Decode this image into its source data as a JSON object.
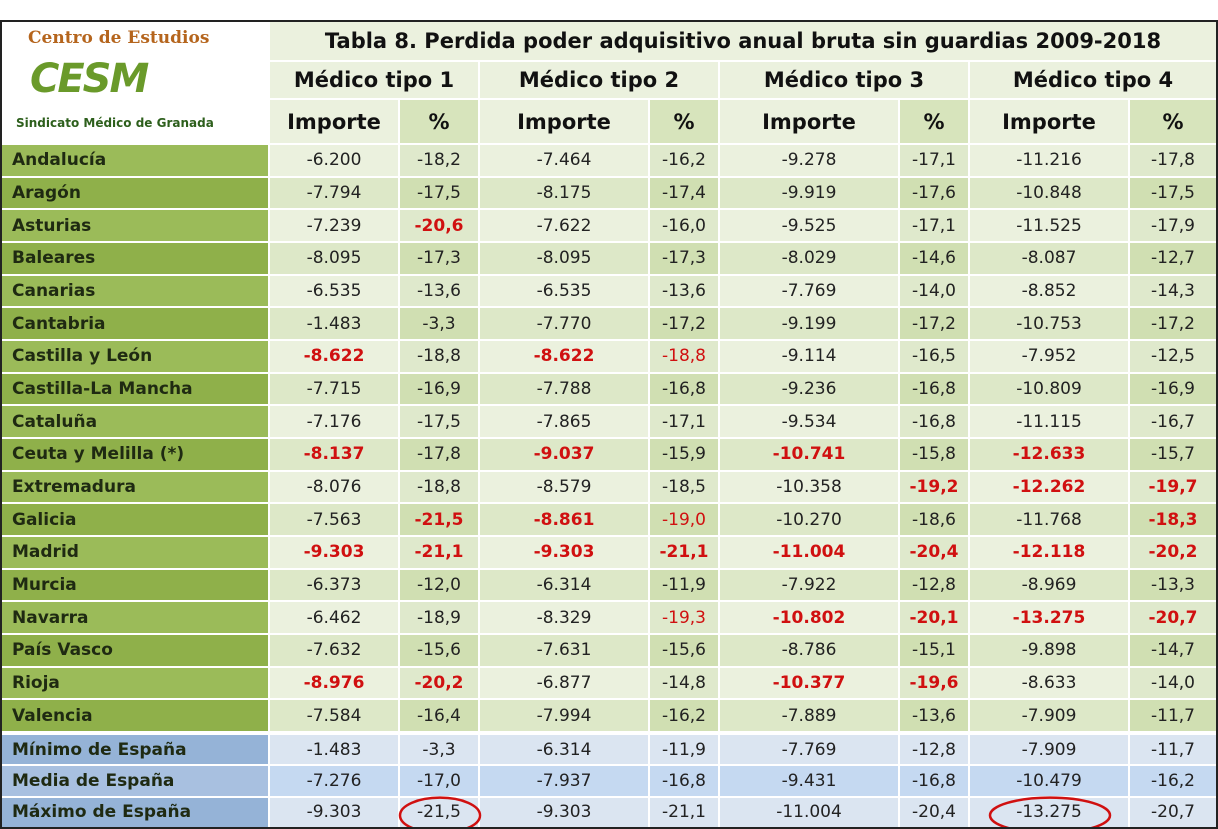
{
  "logo": {
    "top": "Centro de Estudios",
    "name": "CESM",
    "bottom": "Sindicato Médico de Granada"
  },
  "table": {
    "title": "Tabla 8. Perdida poder adquisitivo anual bruta sin guardias 2009-2018",
    "groups": [
      "Médico tipo 1",
      "Médico tipo 2",
      "Médico tipo 3",
      "Médico tipo 4"
    ],
    "subheaders": [
      "Importe",
      "%",
      "Importe",
      "%",
      "Importe",
      "%",
      "Importe",
      "%"
    ],
    "rows": [
      {
        "region": "Andalucía",
        "values": [
          "-6.200",
          "-18,2",
          "-7.464",
          "-16,2",
          "-9.278",
          "-17,1",
          "-11.216",
          "-17,8"
        ],
        "bold_red": [],
        "red": []
      },
      {
        "region": "Aragón",
        "values": [
          "-7.794",
          "-17,5",
          "-8.175",
          "-17,4",
          "-9.919",
          "-17,6",
          "-10.848",
          "-17,5"
        ],
        "bold_red": [],
        "red": []
      },
      {
        "region": "Asturias",
        "values": [
          "-7.239",
          "-20,6",
          "-7.622",
          "-16,0",
          "-9.525",
          "-17,1",
          "-11.525",
          "-17,9"
        ],
        "bold_red": [
          1
        ],
        "red": []
      },
      {
        "region": "Baleares",
        "values": [
          "-8.095",
          "-17,3",
          "-8.095",
          "-17,3",
          "-8.029",
          "-14,6",
          "-8.087",
          "-12,7"
        ],
        "bold_red": [],
        "red": []
      },
      {
        "region": "Canarias",
        "values": [
          "-6.535",
          "-13,6",
          "-6.535",
          "-13,6",
          "-7.769",
          "-14,0",
          "-8.852",
          "-14,3"
        ],
        "bold_red": [],
        "red": []
      },
      {
        "region": "Cantabria",
        "values": [
          "-1.483",
          "-3,3",
          "-7.770",
          "-17,2",
          "-9.199",
          "-17,2",
          "-10.753",
          "-17,2"
        ],
        "bold_red": [],
        "red": []
      },
      {
        "region": "Castilla y León",
        "values": [
          "-8.622",
          "-18,8",
          "-8.622",
          "-18,8",
          "-9.114",
          "-16,5",
          "-7.952",
          "-12,5"
        ],
        "bold_red": [
          0,
          2
        ],
        "red": [
          3
        ]
      },
      {
        "region": "Castilla-La Mancha",
        "values": [
          "-7.715",
          "-16,9",
          "-7.788",
          "-16,8",
          "-9.236",
          "-16,8",
          "-10.809",
          "-16,9"
        ],
        "bold_red": [],
        "red": []
      },
      {
        "region": "Cataluña",
        "values": [
          "-7.176",
          "-17,5",
          "-7.865",
          "-17,1",
          "-9.534",
          "-16,8",
          "-11.115",
          "-16,7"
        ],
        "bold_red": [],
        "red": []
      },
      {
        "region": "Ceuta y Melilla (*)",
        "values": [
          "-8.137",
          "-17,8",
          "-9.037",
          "-15,9",
          "-10.741",
          "-15,8",
          "-12.633",
          "-15,7"
        ],
        "bold_red": [
          0,
          2,
          4,
          6
        ],
        "red": []
      },
      {
        "region": "Extremadura",
        "values": [
          "-8.076",
          "-18,8",
          "-8.579",
          "-18,5",
          "-10.358",
          "-19,2",
          "-12.262",
          "-19,7"
        ],
        "bold_red": [
          5,
          6,
          7
        ],
        "red": []
      },
      {
        "region": "Galicia",
        "values": [
          "-7.563",
          "-21,5",
          "-8.861",
          "-19,0",
          "-10.270",
          "-18,6",
          "-11.768",
          "-18,3"
        ],
        "bold_red": [
          1,
          2,
          7
        ],
        "red": [
          3
        ]
      },
      {
        "region": "Madrid",
        "values": [
          "-9.303",
          "-21,1",
          "-9.303",
          "-21,1",
          "-11.004",
          "-20,4",
          "-12.118",
          "-20,2"
        ],
        "bold_red": [
          0,
          1,
          2,
          3,
          4,
          5,
          6,
          7
        ],
        "red": []
      },
      {
        "region": "Murcia",
        "values": [
          "-6.373",
          "-12,0",
          "-6.314",
          "-11,9",
          "-7.922",
          "-12,8",
          "-8.969",
          "-13,3"
        ],
        "bold_red": [],
        "red": []
      },
      {
        "region": "Navarra",
        "values": [
          "-6.462",
          "-18,9",
          "-8.329",
          "-19,3",
          "-10.802",
          "-20,1",
          "-13.275",
          "-20,7"
        ],
        "bold_red": [
          4,
          5,
          6,
          7
        ],
        "red": [
          3
        ]
      },
      {
        "region": "País Vasco",
        "values": [
          "-7.632",
          "-15,6",
          "-7.631",
          "-15,6",
          "-8.786",
          "-15,1",
          "-9.898",
          "-14,7"
        ],
        "bold_red": [],
        "red": []
      },
      {
        "region": "Rioja",
        "values": [
          "-8.976",
          "-20,2",
          "-6.877",
          "-14,8",
          "-10.377",
          "-19,6",
          "-8.633",
          "-14,0"
        ],
        "bold_red": [
          0,
          1,
          4,
          5
        ],
        "red": []
      },
      {
        "region": "Valencia",
        "values": [
          "-7.584",
          "-16,4",
          "-7.994",
          "-16,2",
          "-7.889",
          "-13,6",
          "-7.909",
          "-11,7"
        ],
        "bold_red": [],
        "red": []
      }
    ],
    "summary": [
      {
        "region": "Mínimo de España",
        "values": [
          "-1.483",
          "-3,3",
          "-6.314",
          "-11,9",
          "-7.769",
          "-12,8",
          "-7.909",
          "-11,7"
        ],
        "circled": []
      },
      {
        "region": "Media de España",
        "values": [
          "-7.276",
          "-17,0",
          "-7.937",
          "-16,8",
          "-9.431",
          "-16,8",
          "-10.479",
          "-16,2"
        ],
        "circled": []
      },
      {
        "region": "Máximo de España",
        "values": [
          "-9.303",
          "-21,5",
          "-9.303",
          "-21,1",
          "-11.004",
          "-20,4",
          "-13.275",
          "-20,7"
        ],
        "circled": [
          1,
          6
        ]
      }
    ]
  }
}
